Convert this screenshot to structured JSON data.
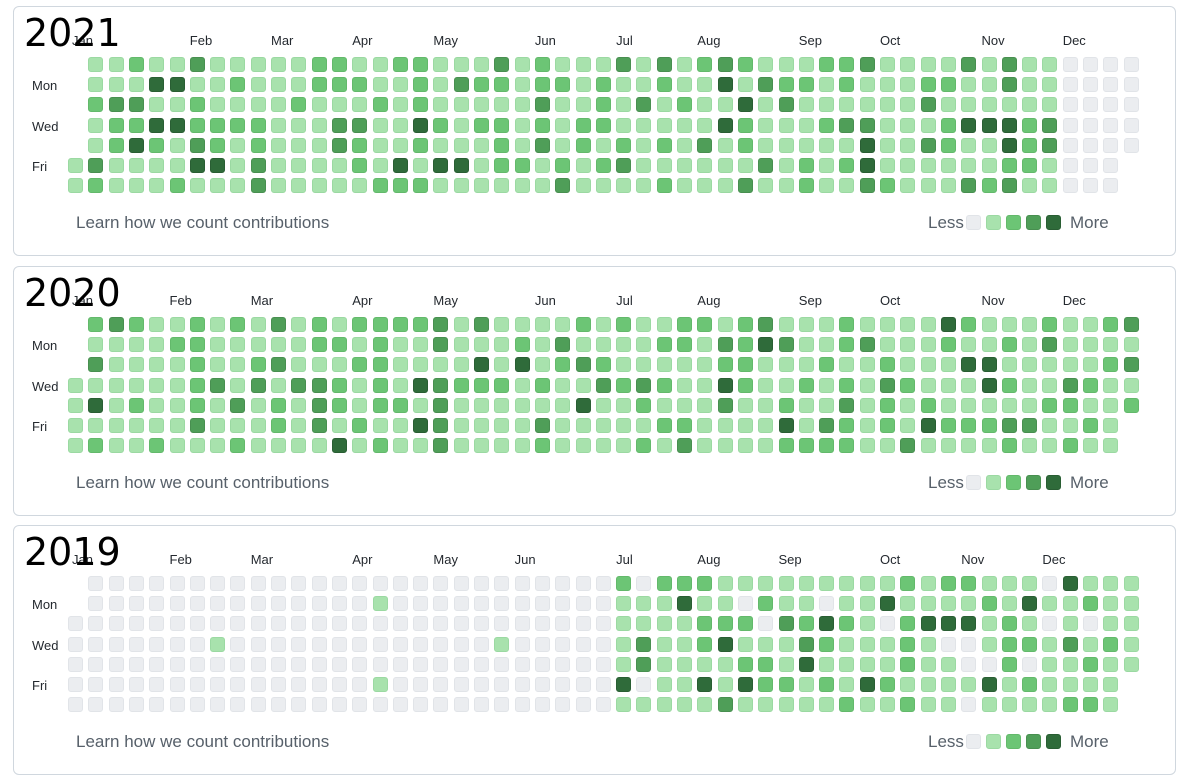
{
  "legend": {
    "less": "Less",
    "more": "More"
  },
  "learn_link": "Learn how we count contributions",
  "days": [
    "Mon",
    "Wed",
    "Fri"
  ],
  "palette": [
    "#ebedf0",
    "#a8e2ad",
    "#6cc575",
    "#4f9e58",
    "#2f6b3a"
  ],
  "panels": [
    {
      "year": "2021",
      "months": [
        "Jan",
        "Feb",
        "Mar",
        "Apr",
        "May",
        "Jun",
        "Jul",
        "Aug",
        "Sep",
        "Oct",
        "Nov",
        "Dec"
      ],
      "month_weeks": [
        0,
        6,
        10,
        14,
        18,
        23,
        27,
        31,
        36,
        40,
        45,
        49
      ],
      "start_day": 5,
      "active_until_week": 48,
      "peaks": [
        [
          3,
          4
        ],
        [
          4,
          1
        ],
        [
          4,
          3
        ],
        [
          5,
          1
        ],
        [
          5,
          3
        ],
        [
          6,
          5
        ],
        [
          7,
          5
        ],
        [
          16,
          5
        ],
        [
          17,
          3
        ],
        [
          18,
          5
        ],
        [
          19,
          5
        ],
        [
          32,
          3
        ],
        [
          32,
          1
        ],
        [
          33,
          2
        ],
        [
          39,
          4
        ],
        [
          39,
          5
        ],
        [
          44,
          3
        ],
        [
          45,
          3
        ],
        [
          46,
          3
        ],
        [
          46,
          4
        ]
      ],
      "seed": 21
    },
    {
      "year": "2020",
      "months": [
        "Jan",
        "Feb",
        "Mar",
        "Apr",
        "May",
        "Jun",
        "Jul",
        "Aug",
        "Sep",
        "Oct",
        "Nov",
        "Dec"
      ],
      "month_weeks": [
        0,
        5,
        9,
        14,
        18,
        23,
        27,
        31,
        36,
        40,
        45,
        49
      ],
      "start_day": 3,
      "active_until_week": 53,
      "peaks": [
        [
          1,
          4
        ],
        [
          13,
          6
        ],
        [
          17,
          5
        ],
        [
          17,
          3
        ],
        [
          20,
          2
        ],
        [
          22,
          2
        ],
        [
          25,
          4
        ],
        [
          32,
          3
        ],
        [
          34,
          1
        ],
        [
          35,
          5
        ],
        [
          42,
          5
        ],
        [
          43,
          0
        ],
        [
          44,
          2
        ],
        [
          45,
          2
        ],
        [
          45,
          3
        ]
      ],
      "seed": 20
    },
    {
      "year": "2019",
      "months": [
        "Jan",
        "Feb",
        "Mar",
        "Apr",
        "May",
        "Jun",
        "Jul",
        "Aug",
        "Sep",
        "Oct",
        "Nov",
        "Dec"
      ],
      "month_weeks": [
        0,
        5,
        9,
        14,
        18,
        22,
        27,
        31,
        35,
        40,
        44,
        48
      ],
      "start_day": 2,
      "active_until_week": 53,
      "sparse_until_week": 27,
      "sparse_hits": [
        [
          7,
          3
        ],
        [
          15,
          1
        ],
        [
          21,
          3
        ],
        [
          15,
          5
        ]
      ],
      "peaks": [
        [
          27,
          5
        ],
        [
          30,
          1
        ],
        [
          31,
          5
        ],
        [
          32,
          3
        ],
        [
          33,
          5
        ],
        [
          36,
          4
        ],
        [
          37,
          2
        ],
        [
          39,
          5
        ],
        [
          40,
          1
        ],
        [
          42,
          2
        ],
        [
          43,
          2
        ],
        [
          44,
          2
        ],
        [
          45,
          5
        ],
        [
          47,
          1
        ],
        [
          49,
          0
        ]
      ],
      "seed": 19
    }
  ]
}
